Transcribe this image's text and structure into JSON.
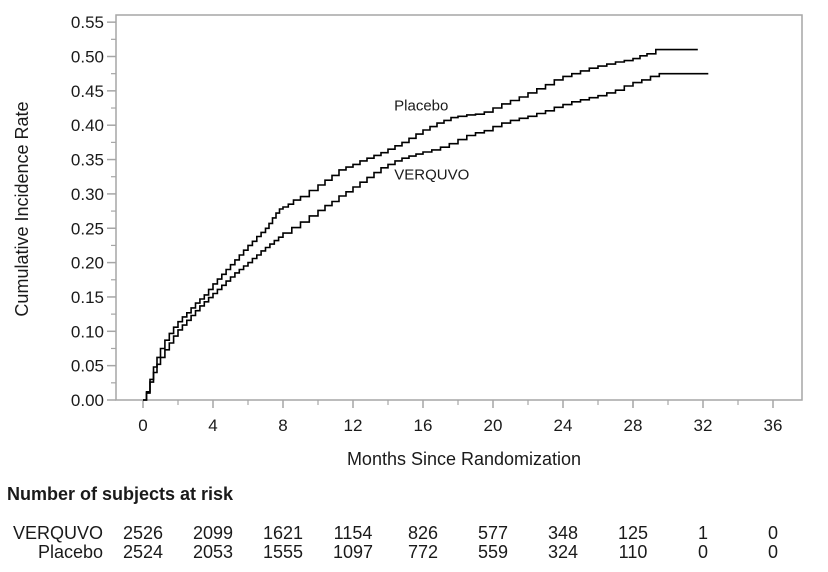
{
  "chart_data": {
    "type": "line",
    "subtype": "kaplan-meier-step",
    "title": "",
    "xlabel": "Months Since Randomization",
    "ylabel": "Cumulative Incidence Rate",
    "xlim": [
      0,
      36
    ],
    "ylim": [
      0,
      0.55
    ],
    "grid": false,
    "legend_position": "inline-curve-labels",
    "x_ticks": [
      0,
      4,
      8,
      12,
      16,
      20,
      24,
      28,
      32,
      36
    ],
    "x_minor_ticks": [
      2,
      6,
      10,
      14,
      18,
      22,
      26,
      30,
      34
    ],
    "y_ticks": [
      0.0,
      0.05,
      0.1,
      0.15,
      0.2,
      0.25,
      0.3,
      0.35,
      0.4,
      0.45,
      0.5,
      0.55
    ],
    "y_tick_labels": [
      "0.00",
      "0.05",
      "0.10",
      "0.15",
      "0.20",
      "0.25",
      "0.30",
      "0.35",
      "0.40",
      "0.45",
      "0.50",
      "0.55"
    ],
    "series": [
      {
        "name": "Placebo",
        "label_anchor": {
          "month": 15.9,
          "value": 0.429
        },
        "points": [
          [
            0,
            0
          ],
          [
            0.2,
            0.012
          ],
          [
            0.4,
            0.03
          ],
          [
            0.6,
            0.048
          ],
          [
            0.8,
            0.062
          ],
          [
            1,
            0.075
          ],
          [
            1.25,
            0.087
          ],
          [
            1.5,
            0.097
          ],
          [
            1.75,
            0.106
          ],
          [
            2,
            0.114
          ],
          [
            2.25,
            0.121
          ],
          [
            2.5,
            0.127
          ],
          [
            2.75,
            0.134
          ],
          [
            3,
            0.141
          ],
          [
            3.25,
            0.147
          ],
          [
            3.5,
            0.153
          ],
          [
            3.75,
            0.161
          ],
          [
            4,
            0.169
          ],
          [
            4.25,
            0.176
          ],
          [
            4.5,
            0.183
          ],
          [
            4.75,
            0.19
          ],
          [
            5,
            0.197
          ],
          [
            5.25,
            0.204
          ],
          [
            5.5,
            0.211
          ],
          [
            5.75,
            0.218
          ],
          [
            6,
            0.225
          ],
          [
            6.25,
            0.231
          ],
          [
            6.5,
            0.238
          ],
          [
            6.75,
            0.244
          ],
          [
            7,
            0.25
          ],
          [
            7.2,
            0.257
          ],
          [
            7.4,
            0.265
          ],
          [
            7.6,
            0.272
          ],
          [
            7.8,
            0.278
          ],
          [
            8,
            0.281
          ],
          [
            8.3,
            0.285
          ],
          [
            8.6,
            0.291
          ],
          [
            9,
            0.296
          ],
          [
            9.5,
            0.305
          ],
          [
            10,
            0.313
          ],
          [
            10.4,
            0.32
          ],
          [
            10.8,
            0.327
          ],
          [
            11.2,
            0.335
          ],
          [
            11.6,
            0.339
          ],
          [
            12,
            0.343
          ],
          [
            12.4,
            0.348
          ],
          [
            12.8,
            0.352
          ],
          [
            13.2,
            0.356
          ],
          [
            13.6,
            0.36
          ],
          [
            14,
            0.365
          ],
          [
            14.4,
            0.37
          ],
          [
            14.8,
            0.375
          ],
          [
            15.2,
            0.381
          ],
          [
            15.6,
            0.387
          ],
          [
            16,
            0.393
          ],
          [
            16.4,
            0.398
          ],
          [
            16.8,
            0.403
          ],
          [
            17.2,
            0.407
          ],
          [
            17.6,
            0.411
          ],
          [
            18,
            0.413
          ],
          [
            18.5,
            0.415
          ],
          [
            19,
            0.416
          ],
          [
            19.5,
            0.419
          ],
          [
            20,
            0.425
          ],
          [
            20.5,
            0.431
          ],
          [
            21,
            0.436
          ],
          [
            21.5,
            0.441
          ],
          [
            22,
            0.447
          ],
          [
            22.5,
            0.453
          ],
          [
            23,
            0.459
          ],
          [
            23.5,
            0.466
          ],
          [
            24,
            0.471
          ],
          [
            24.5,
            0.475
          ],
          [
            25,
            0.479
          ],
          [
            25.5,
            0.483
          ],
          [
            26,
            0.486
          ],
          [
            26.5,
            0.489
          ],
          [
            27,
            0.492
          ],
          [
            27.5,
            0.494
          ],
          [
            28,
            0.497
          ],
          [
            28.4,
            0.501
          ],
          [
            28.8,
            0.504
          ],
          [
            29.3,
            0.51
          ],
          [
            30,
            0.51
          ],
          [
            31.7,
            0.51
          ]
        ]
      },
      {
        "name": "VERQUVO",
        "label_anchor": {
          "month": 16.5,
          "value": 0.328
        },
        "points": [
          [
            0,
            0
          ],
          [
            0.2,
            0.01
          ],
          [
            0.4,
            0.026
          ],
          [
            0.6,
            0.04
          ],
          [
            0.8,
            0.052
          ],
          [
            1,
            0.062
          ],
          [
            1.25,
            0.073
          ],
          [
            1.5,
            0.083
          ],
          [
            1.75,
            0.093
          ],
          [
            2,
            0.102
          ],
          [
            2.25,
            0.109
          ],
          [
            2.5,
            0.116
          ],
          [
            2.75,
            0.123
          ],
          [
            3,
            0.13
          ],
          [
            3.25,
            0.137
          ],
          [
            3.5,
            0.143
          ],
          [
            3.75,
            0.149
          ],
          [
            4,
            0.155
          ],
          [
            4.25,
            0.161
          ],
          [
            4.5,
            0.167
          ],
          [
            4.75,
            0.173
          ],
          [
            5,
            0.179
          ],
          [
            5.25,
            0.185
          ],
          [
            5.5,
            0.19
          ],
          [
            5.75,
            0.195
          ],
          [
            6,
            0.2
          ],
          [
            6.25,
            0.206
          ],
          [
            6.5,
            0.211
          ],
          [
            6.75,
            0.217
          ],
          [
            7,
            0.222
          ],
          [
            7.25,
            0.227
          ],
          [
            7.5,
            0.232
          ],
          [
            7.75,
            0.237
          ],
          [
            8,
            0.243
          ],
          [
            8.5,
            0.251
          ],
          [
            9,
            0.259
          ],
          [
            9.5,
            0.268
          ],
          [
            10,
            0.276
          ],
          [
            10.4,
            0.283
          ],
          [
            10.8,
            0.289
          ],
          [
            11.2,
            0.297
          ],
          [
            11.6,
            0.303
          ],
          [
            12,
            0.31
          ],
          [
            12.4,
            0.317
          ],
          [
            12.8,
            0.324
          ],
          [
            13.2,
            0.331
          ],
          [
            13.6,
            0.338
          ],
          [
            14,
            0.343
          ],
          [
            14.4,
            0.348
          ],
          [
            14.8,
            0.352
          ],
          [
            15.2,
            0.355
          ],
          [
            15.6,
            0.358
          ],
          [
            16,
            0.361
          ],
          [
            16.5,
            0.364
          ],
          [
            17,
            0.368
          ],
          [
            17.5,
            0.373
          ],
          [
            18,
            0.379
          ],
          [
            18.5,
            0.385
          ],
          [
            19,
            0.389
          ],
          [
            19.5,
            0.392
          ],
          [
            20,
            0.398
          ],
          [
            20.5,
            0.403
          ],
          [
            21,
            0.407
          ],
          [
            21.5,
            0.41
          ],
          [
            22,
            0.413
          ],
          [
            22.5,
            0.417
          ],
          [
            23,
            0.421
          ],
          [
            23.5,
            0.426
          ],
          [
            24,
            0.43
          ],
          [
            24.5,
            0.434
          ],
          [
            25,
            0.437
          ],
          [
            25.5,
            0.44
          ],
          [
            26,
            0.443
          ],
          [
            26.5,
            0.447
          ],
          [
            27,
            0.451
          ],
          [
            27.5,
            0.457
          ],
          [
            28,
            0.462
          ],
          [
            28.5,
            0.466
          ],
          [
            29,
            0.471
          ],
          [
            29.5,
            0.475
          ],
          [
            30.5,
            0.475
          ],
          [
            32.3,
            0.475
          ]
        ]
      }
    ]
  },
  "risk_table": {
    "title": "Number of subjects at risk",
    "time_points": [
      0,
      4,
      8,
      12,
      16,
      20,
      24,
      28,
      32,
      36
    ],
    "rows": [
      {
        "name": "VERQUVO",
        "counts": [
          "2526",
          "2099",
          "1621",
          "1154",
          "826",
          "577",
          "348",
          "125",
          "1",
          "0"
        ]
      },
      {
        "name": "Placebo",
        "counts": [
          "2524",
          "2053",
          "1555",
          "1097",
          "772",
          "559",
          "324",
          "110",
          "0",
          "0"
        ]
      }
    ]
  },
  "colors": {
    "curve": "#000000",
    "axis_frame": "#a6a6a6",
    "text": "#1a1a1a",
    "background": "#ffffff"
  }
}
